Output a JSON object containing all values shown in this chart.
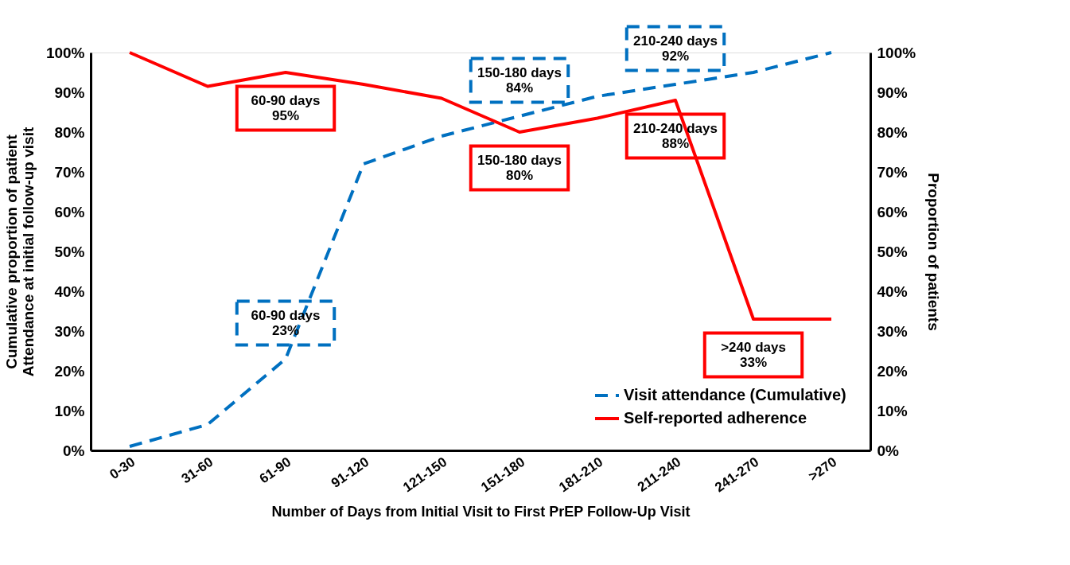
{
  "chart_data": {
    "type": "line",
    "xlabel": "Number of Days from Initial Visit to First PrEP Follow-Up Visit",
    "ylabel": "Cumulative proportion of patient\nAttendance at initial follow-up visit",
    "y2label": "Proportion of patients",
    "categories": [
      "0-30",
      "31-60",
      "61-90",
      "91-120",
      "121-150",
      "151-180",
      "181-210",
      "211-240",
      "241-270",
      ">270"
    ],
    "series": [
      {
        "name": "Visit attendance (Cumulative)",
        "color": "#0070c0",
        "line_style": "dashed",
        "values": [
          1,
          6.5,
          23,
          72,
          79,
          84,
          89,
          92,
          95,
          100
        ]
      },
      {
        "name": "Self-reported adherence",
        "color": "#ff0000",
        "line_style": "solid",
        "axis": "y2",
        "values": [
          100,
          91.5,
          95,
          92,
          88.5,
          80,
          83.5,
          88,
          33,
          33
        ]
      }
    ],
    "ylim": [
      0,
      100
    ],
    "yticks": [
      {
        "value": 0,
        "label": "0%"
      },
      {
        "value": 10,
        "label": "10%"
      },
      {
        "value": 20,
        "label": "20%"
      },
      {
        "value": 30,
        "label": "30%"
      },
      {
        "value": 40,
        "label": "40%"
      },
      {
        "value": 50,
        "label": "50%"
      },
      {
        "value": 60,
        "label": "60%"
      },
      {
        "value": 70,
        "label": "70%"
      },
      {
        "value": 80,
        "label": "80%"
      },
      {
        "value": 90,
        "label": "90%"
      },
      {
        "value": 100,
        "label": "100%"
      }
    ],
    "y2lim": [
      0,
      100
    ],
    "y2ticks": [
      {
        "value": 0,
        "label": "0%"
      },
      {
        "value": 10,
        "label": "10%"
      },
      {
        "value": 20,
        "label": "20%"
      },
      {
        "value": 30,
        "label": "30%"
      },
      {
        "value": 40,
        "label": "40%"
      },
      {
        "value": 50,
        "label": "50%"
      },
      {
        "value": 60,
        "label": "60%"
      },
      {
        "value": 70,
        "label": "70%"
      },
      {
        "value": 80,
        "label": "80%"
      },
      {
        "value": 90,
        "label": "90%"
      },
      {
        "value": 100,
        "label": "100%"
      }
    ],
    "annotations": [
      {
        "text": "60-90 days\n95%",
        "x": "61-90",
        "y": 95
      },
      {
        "text": "60-90 days\n23%",
        "x": "61-90",
        "y": 23
      },
      {
        "text": "150-180 days\n84%",
        "x": "151-180",
        "y": 84
      },
      {
        "text": "150-180 days\n80%",
        "x": "151-180",
        "y": 80
      },
      {
        "text": "210-240 days\n88%",
        "x": "211-240",
        "y": 88
      },
      {
        "text": "210-240 days\n92%",
        "x": "211-240",
        "y": 92
      },
      {
        "text": ">240 days\n33%",
        "x": "241-270",
        "y": 33
      }
    ],
    "grid": false,
    "legend": "bottom right",
    "marker": "none"
  }
}
